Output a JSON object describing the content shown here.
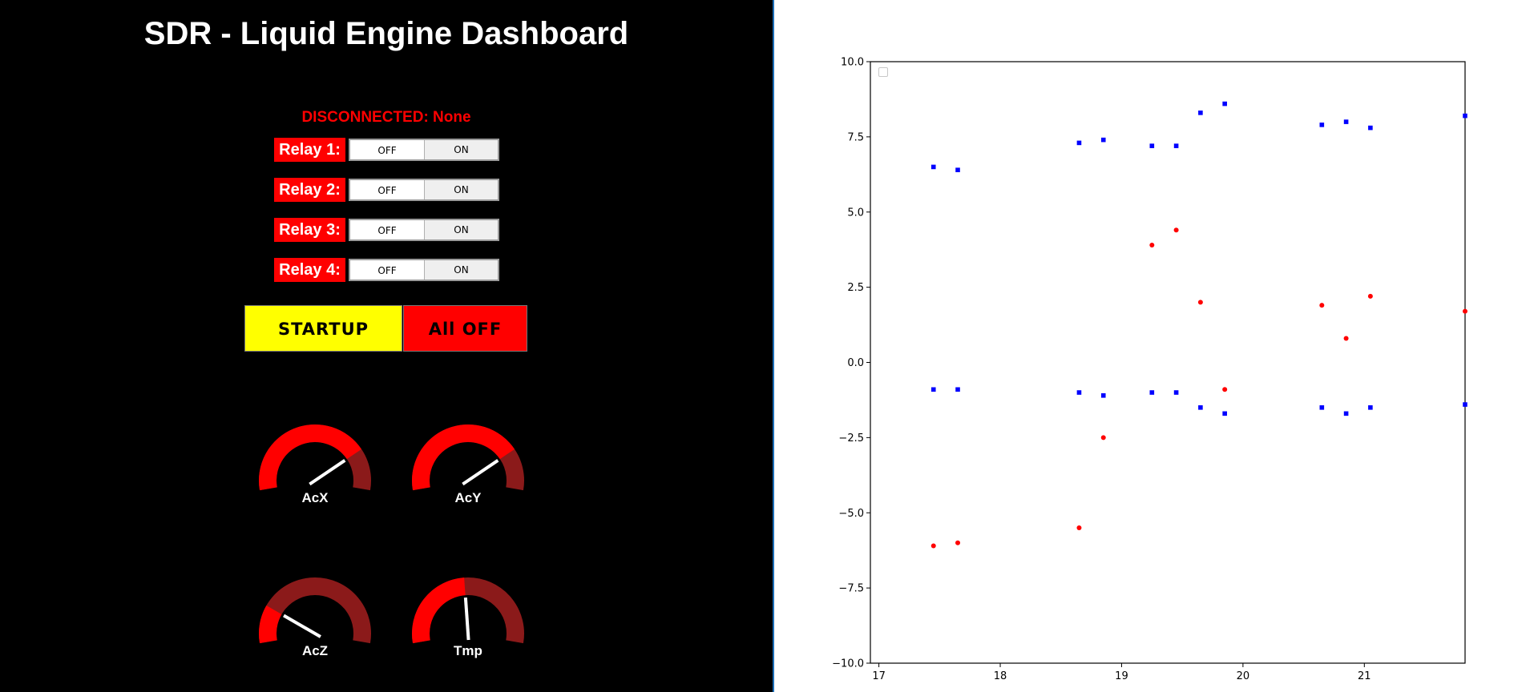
{
  "dashboard": {
    "title": "SDR - Liquid Engine Dashboard",
    "status": "DISCONNECTED: None",
    "relays": [
      {
        "label": "Relay 1:",
        "off_label": "OFF",
        "on_label": "ON",
        "state": "OFF"
      },
      {
        "label": "Relay 2:",
        "off_label": "OFF",
        "on_label": "ON",
        "state": "OFF"
      },
      {
        "label": "Relay 3:",
        "off_label": "OFF",
        "on_label": "ON",
        "state": "OFF"
      },
      {
        "label": "Relay 4:",
        "off_label": "OFF",
        "on_label": "ON",
        "state": "OFF"
      }
    ],
    "startup_label": "STARTUP",
    "all_off_label": "All OFF",
    "gauges": [
      {
        "label": "AcX",
        "fraction": 0.78
      },
      {
        "label": "AcY",
        "fraction": 0.78
      },
      {
        "label": "AcZ",
        "fraction": 0.2
      },
      {
        "label": "Tmp",
        "fraction": 0.48
      }
    ],
    "colors": {
      "background": "#000000",
      "accent": "#ff0000",
      "gauge_fill": "#ff0000",
      "gauge_track": "#8b1a1a",
      "needle": "#ffffff",
      "startup": "#ffff00",
      "all_off": "#ff0000"
    }
  },
  "chart_data": {
    "type": "scatter",
    "title": "",
    "xlabel": "",
    "ylabel": "",
    "xlim": [
      16.93,
      21.83
    ],
    "ylim": [
      -10,
      10
    ],
    "x_ticks": [
      "17",
      "18",
      "19",
      "20",
      "21"
    ],
    "y_ticks": [
      "10.0",
      "7.5",
      "5.0",
      "2.5",
      "0.0",
      "−2.5",
      "−5.0",
      "−7.5",
      "−10.0"
    ],
    "grid": false,
    "legend": "top-left (empty)",
    "series": [
      {
        "color": "#0000ff",
        "marker": "square",
        "points": [
          [
            17.45,
            6.5
          ],
          [
            17.65,
            6.4
          ],
          [
            18.65,
            7.3
          ],
          [
            18.85,
            7.4
          ],
          [
            19.25,
            7.2
          ],
          [
            19.45,
            7.2
          ],
          [
            19.65,
            8.3
          ],
          [
            19.85,
            8.6
          ],
          [
            20.65,
            7.9
          ],
          [
            20.85,
            8.0
          ],
          [
            21.05,
            7.8
          ],
          [
            21.83,
            8.2
          ]
        ]
      },
      {
        "color": "#ff0000",
        "marker": "circle",
        "points": [
          [
            17.45,
            -6.1
          ],
          [
            17.65,
            -6.0
          ],
          [
            18.65,
            -5.5
          ],
          [
            18.85,
            -2.5
          ],
          [
            19.25,
            3.9
          ],
          [
            19.45,
            4.4
          ],
          [
            19.65,
            2.0
          ],
          [
            19.85,
            -0.9
          ],
          [
            20.65,
            1.9
          ],
          [
            20.85,
            0.8
          ],
          [
            21.05,
            2.2
          ],
          [
            21.83,
            1.7
          ]
        ]
      },
      {
        "color": "#0000ff",
        "marker": "square",
        "points": [
          [
            17.45,
            -0.9
          ],
          [
            17.65,
            -0.9
          ],
          [
            18.65,
            -1.0
          ],
          [
            18.85,
            -1.1
          ],
          [
            19.25,
            -1.0
          ],
          [
            19.45,
            -1.0
          ],
          [
            19.65,
            -1.5
          ],
          [
            19.85,
            -1.7
          ],
          [
            20.65,
            -1.5
          ],
          [
            20.85,
            -1.7
          ],
          [
            21.05,
            -1.5
          ],
          [
            21.83,
            -1.4
          ]
        ]
      }
    ]
  }
}
